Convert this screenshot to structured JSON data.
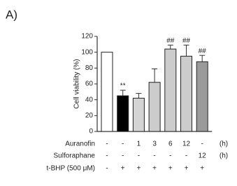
{
  "chart_data": {
    "type": "bar",
    "panel_label": "A)",
    "y_label": "Cell viability (%)",
    "values": [
      100,
      45,
      42,
      62,
      104,
      95,
      88
    ],
    "errors": [
      0,
      7,
      6,
      17,
      5,
      14,
      8
    ],
    "colors": [
      "#ffffff",
      "#000000",
      "#d4d4d4",
      "#cccccc",
      "#cccccc",
      "#cccccc",
      "#9a9a9a"
    ],
    "annotations": [
      null,
      "**",
      null,
      null,
      "##",
      "##",
      "##"
    ],
    "ylim": [
      0,
      120
    ],
    "yticks": [
      0,
      20,
      40,
      60,
      80,
      100,
      120
    ],
    "conditions": [
      {
        "label": "Auranofin",
        "cells": [
          "-",
          "-",
          "1",
          "3",
          "6",
          "12",
          "-"
        ],
        "unit": "(h)"
      },
      {
        "label": "Sulforaphane",
        "cells": [
          "-",
          "-",
          "-",
          "-",
          "-",
          "-",
          "12"
        ],
        "unit": "(h)"
      },
      {
        "label": "t-BHP (500 μM)",
        "cells": [
          "-",
          "+",
          "+",
          "+",
          "+",
          "+",
          "+"
        ]
      }
    ]
  }
}
